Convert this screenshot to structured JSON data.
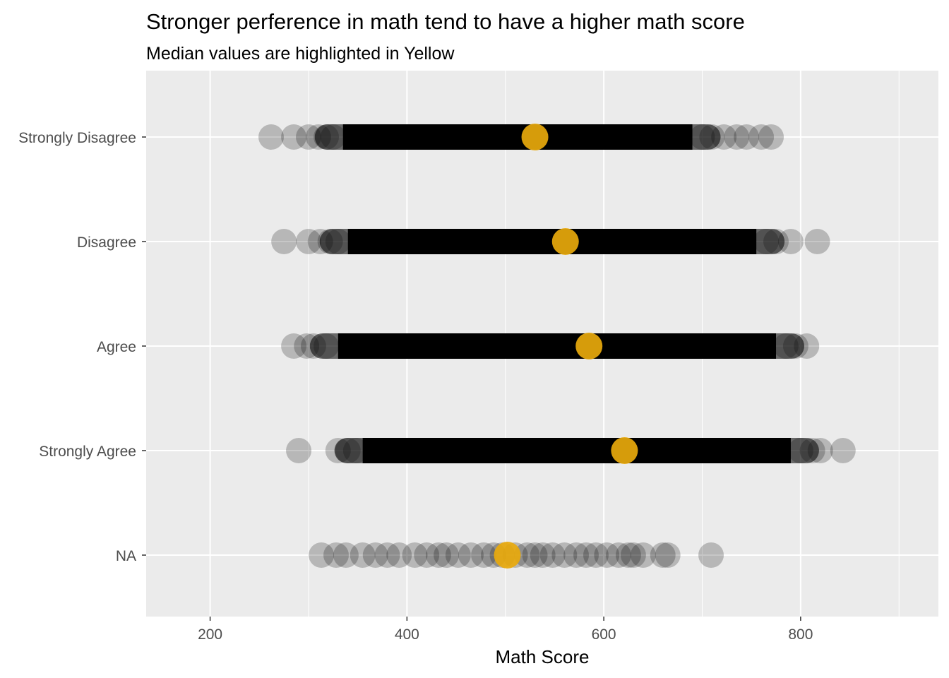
{
  "chart_data": {
    "type": "scatter",
    "title": "Stronger perference in math tend to have a higher math score",
    "subtitle": "Median values are highlighted in Yellow",
    "xlabel": "Math Score",
    "ylabel": "",
    "xlim": [
      135,
      940
    ],
    "x_ticks": [
      200,
      400,
      600,
      800
    ],
    "x_minor_ticks": [
      300,
      500,
      700,
      900
    ],
    "categories": [
      "Strongly Disagree",
      "Disagree",
      "Agree",
      "Strongly Agree",
      "NA"
    ],
    "grid": true,
    "legend": "none",
    "colors": {
      "panel_background": "#ebebeb",
      "grid": "#ffffff",
      "points": "#000000",
      "median": "#e8a90c"
    },
    "series": [
      {
        "category": "Strongly Disagree",
        "range": [
          262,
          770
        ],
        "dense_range": [
          335,
          690
        ],
        "scatter_points": [
          262,
          285,
          300,
          310,
          318,
          325,
          700,
          710,
          722,
          735,
          745,
          760,
          770
        ],
        "median": 530
      },
      {
        "category": "Disagree",
        "range": [
          275,
          817
        ],
        "dense_range": [
          340,
          755
        ],
        "scatter_points": [
          275,
          300,
          312,
          322,
          330,
          765,
          775,
          790,
          817
        ],
        "median": 561
      },
      {
        "category": "Agree",
        "range": [
          285,
          806
        ],
        "dense_range": [
          330,
          775
        ],
        "scatter_points": [
          285,
          298,
          305,
          318,
          785,
          795,
          806
        ],
        "median": 585
      },
      {
        "category": "Strongly Agree",
        "range": [
          290,
          843
        ],
        "dense_range": [
          355,
          790
        ],
        "scatter_points": [
          290,
          330,
          340,
          348,
          800,
          812,
          820,
          843
        ],
        "median": 621
      },
      {
        "category": "NA",
        "range": [
          313,
          709
        ],
        "dense_range": null,
        "scatter_points": [
          313,
          328,
          338,
          355,
          368,
          380,
          392,
          408,
          420,
          432,
          440,
          452,
          465,
          478,
          488,
          497,
          510,
          522,
          530,
          538,
          548,
          560,
          572,
          582,
          592,
          603,
          615,
          625,
          630,
          640,
          660,
          665,
          709
        ],
        "median": 502
      }
    ]
  }
}
